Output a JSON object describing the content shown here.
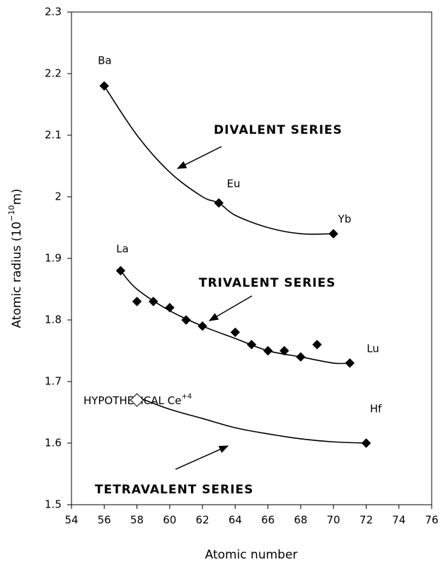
{
  "chart_data": {
    "type": "scatter",
    "xlabel": "Atomic number",
    "ylabel": [
      "Atomic radius (10",
      "−10",
      "m)"
    ],
    "xlim": [
      54,
      76
    ],
    "xticks": [
      54,
      56,
      58,
      60,
      62,
      64,
      66,
      68,
      70,
      72,
      74,
      76
    ],
    "ylim": [
      1.5,
      2.3
    ],
    "yticks": [
      1.5,
      1.6,
      1.7,
      1.8,
      1.9,
      2,
      2.1,
      2.2,
      2.3
    ],
    "series": [
      {
        "color": "#000000",
        "fill": "#000000",
        "x": [
          56,
          63,
          70
        ],
        "values": [
          2.18,
          1.99,
          1.94
        ]
      },
      {
        "color": "#000000",
        "fill": "#000000",
        "x": [
          57,
          58,
          59,
          60,
          61,
          62,
          64,
          65,
          66,
          67,
          68,
          69,
          71
        ],
        "values": [
          1.88,
          1.83,
          1.83,
          1.82,
          1.8,
          1.79,
          1.78,
          1.76,
          1.75,
          1.75,
          1.74,
          1.76,
          1.73
        ]
      },
      {
        "color": "#000000",
        "fill": "#000000",
        "x": [
          72
        ],
        "values": [
          1.6
        ]
      },
      {
        "color": "#000000",
        "fill": "#ffffff",
        "x": [
          58
        ],
        "values": [
          1.67
        ]
      }
    ],
    "curves": [
      {
        "color": "#000000",
        "x": [
          56,
          58,
          60,
          62,
          63,
          64,
          66,
          68,
          70
        ],
        "values": [
          2.18,
          2.1,
          2.04,
          2.0,
          1.99,
          1.97,
          1.95,
          1.94,
          1.94
        ]
      },
      {
        "color": "#000000",
        "x": [
          57,
          58,
          60,
          62,
          64,
          66,
          68,
          70,
          71
        ],
        "values": [
          1.88,
          1.85,
          1.815,
          1.79,
          1.77,
          1.75,
          1.74,
          1.73,
          1.73
        ]
      },
      {
        "color": "#000000",
        "x": [
          58,
          60,
          62,
          64,
          66,
          68,
          70,
          72
        ],
        "values": [
          1.675,
          1.655,
          1.64,
          1.625,
          1.615,
          1.607,
          1.602,
          1.6
        ]
      }
    ],
    "annotations": [
      "Ba",
      "Eu",
      "Yb",
      "La",
      "Lu",
      "Hf",
      "DIVALENT SERIES",
      "TRIVALENT SERIES",
      "TETRAVALENT SERIES"
    ],
    "ce_label": [
      "HYPOTHETICAL Ce",
      "+4"
    ]
  }
}
